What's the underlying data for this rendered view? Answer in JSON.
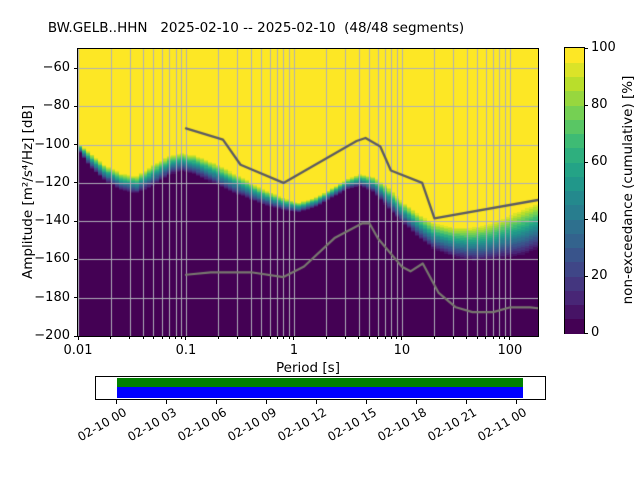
{
  "title": "BW.GELB..HHN   2025-02-10 -- 2025-02-10  (48/48 segments)",
  "colors": {
    "cmap_min": "#440154",
    "cmap_max": "#fde725",
    "grid": "#aeaeb8",
    "frame": "#000000",
    "nhnm_line": "#5b5b63",
    "nlnm_line": "#78786f",
    "timeline_green": "#008000",
    "timeline_blue": "#0000ff"
  },
  "chart_data": {
    "type": "heatmap",
    "title": "BW.GELB..HHN   2025-02-10 -- 2025-02-10  (48/48 segments)",
    "xlabel": "Period [s]",
    "ylabel": "Amplitude [m²/s⁴/Hz] [dB]",
    "x_scale": "log",
    "xlim": [
      0.01,
      182
    ],
    "ylim": [
      -200,
      -50
    ],
    "grid": true,
    "x_major_ticks": [
      0.01,
      0.1,
      1,
      10,
      100
    ],
    "x_major_tick_labels": [
      "0.01",
      "0.1",
      "1",
      "10",
      "100"
    ],
    "y_ticks": [
      -60,
      -80,
      -100,
      -120,
      -140,
      -160,
      -180,
      -200
    ],
    "y_tick_labels": [
      "−60",
      "−80",
      "−100",
      "−120",
      "−140",
      "−160",
      "−180",
      "−200"
    ],
    "colormap": "viridis",
    "colormap_stops": [
      "#440154",
      "#482878",
      "#3e4989",
      "#31688e",
      "#26828e",
      "#1f9e89",
      "#35b779",
      "#6ece58",
      "#b5de2b",
      "#fde725"
    ],
    "colorbar": {
      "label": "non-exceedance (cumulative) [%]",
      "lim": [
        0,
        100
      ],
      "ticks": [
        0,
        20,
        40,
        60,
        80,
        100
      ],
      "tick_labels": [
        "0",
        "20",
        "40",
        "60",
        "80",
        "100"
      ],
      "n_steps": 20
    },
    "cumulative_distribution": {
      "periods_s": [
        0.01,
        0.013,
        0.018,
        0.025,
        0.035,
        0.05,
        0.07,
        0.09,
        0.12,
        0.2,
        0.3,
        0.5,
        0.8,
        1.1,
        1.6,
        2.3,
        3.2,
        4.2,
        5.5,
        7.5,
        10,
        14,
        20,
        30,
        45,
        65,
        90,
        130,
        182
      ],
      "median_db": [
        -101,
        -108,
        -115,
        -119.5,
        -121,
        -116,
        -111,
        -109,
        -110.5,
        -116,
        -121,
        -127,
        -131,
        -133,
        -130,
        -125,
        -120.5,
        -118.5,
        -121,
        -128,
        -135,
        -142,
        -148,
        -151,
        -152,
        -151,
        -148.5,
        -146,
        -142.5
      ],
      "spread_db": [
        4,
        8,
        9,
        9.5,
        10,
        12,
        11,
        10,
        11,
        12,
        11,
        9,
        7,
        5.5,
        5.5,
        5.5,
        6,
        7,
        9,
        12,
        12,
        13,
        15,
        17,
        19,
        21,
        23,
        26,
        26
      ]
    },
    "noise_model_lines": {
      "high_gray_line": {
        "periods_s": [
          0.1,
          0.22,
          0.32,
          0.8,
          3.8,
          4.6,
          6.3,
          7.9,
          15.4,
          20,
          182
        ],
        "db": [
          -91.5,
          -97.4,
          -110.5,
          -120,
          -98.1,
          -96.5,
          -101,
          -113.5,
          -120,
          -138.5,
          -128.9
        ]
      },
      "low_gray_line": {
        "periods_s": [
          0.1,
          0.17,
          0.4,
          0.8,
          1.24,
          2.4,
          4.3,
          5,
          6,
          10,
          12,
          15.6,
          21.9,
          31.6,
          45,
          70,
          101,
          154,
          182
        ],
        "db": [
          -168,
          -166.7,
          -166.7,
          -169.2,
          -163.7,
          -148.6,
          -141.1,
          -141.1,
          -149,
          -163.8,
          -166.2,
          -162.1,
          -177.5,
          -185,
          -187.5,
          -187.5,
          -185,
          -185,
          -185.5
        ]
      }
    },
    "timeline": {
      "tick_labels": [
        "02-10 00",
        "02-10 03",
        "02-10 06",
        "02-10 09",
        "02-10 12",
        "02-10 15",
        "02-10 18",
        "02-10 21",
        "02-11 00"
      ],
      "coverage_start_label": "02-10 00",
      "coverage_end_label": "02-11 00"
    }
  }
}
